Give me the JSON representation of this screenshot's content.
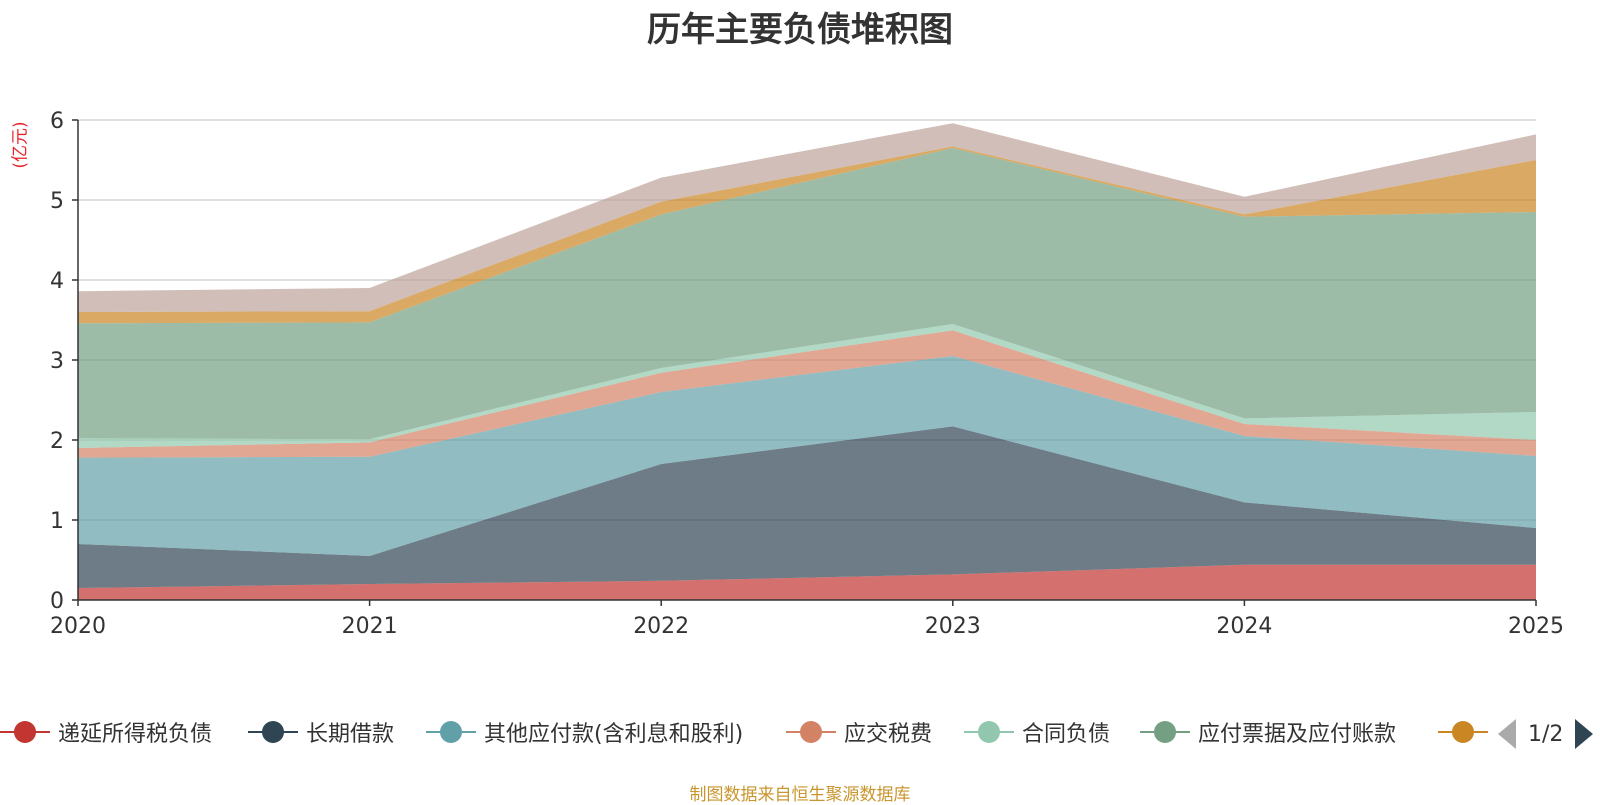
{
  "title": "历年主要负债堆积图",
  "unit": "(亿元)",
  "source": "制图数据来自恒生聚源数据库",
  "pager": {
    "text": "1/2"
  },
  "chart_data": {
    "type": "area",
    "stacked": true,
    "x": [
      "2020",
      "2021",
      "2022",
      "2023",
      "2024",
      "2025"
    ],
    "ylim": [
      0,
      6
    ],
    "yticks": [
      "0",
      "1",
      "2",
      "3",
      "4",
      "5",
      "6"
    ],
    "grid": true,
    "legend_position": "bottom",
    "series": [
      {
        "name": "递延所得税负债",
        "color": "#c23531",
        "values": [
          0.15,
          0.2,
          0.24,
          0.32,
          0.44,
          0.44
        ]
      },
      {
        "name": "长期借款",
        "color": "#2f4554",
        "values": [
          0.55,
          0.35,
          1.46,
          1.85,
          0.78,
          0.46
        ]
      },
      {
        "name": "其他应付款(含利息和股利)",
        "color": "#61a0a8",
        "values": [
          1.08,
          1.24,
          0.9,
          0.88,
          0.83,
          0.9
        ]
      },
      {
        "name": "应交税费",
        "color": "#d48265",
        "values": [
          0.12,
          0.18,
          0.24,
          0.32,
          0.15,
          0.2
        ]
      },
      {
        "name": "合同负债",
        "color": "#91c7ae",
        "values": [
          0.12,
          0.04,
          0.06,
          0.08,
          0.07,
          0.35
        ]
      },
      {
        "name": "应付票据及应付账款",
        "color": "#749f83",
        "values": [
          1.44,
          1.46,
          1.92,
          2.2,
          2.52,
          2.5
        ]
      },
      {
        "name": "",
        "color": "#ca8622",
        "values": [
          0.14,
          0.14,
          0.16,
          0.02,
          0.03,
          0.65
        ]
      },
      {
        "name": "",
        "color": "#bda29a",
        "values": [
          0.26,
          0.29,
          0.3,
          0.29,
          0.22,
          0.32
        ]
      }
    ]
  }
}
